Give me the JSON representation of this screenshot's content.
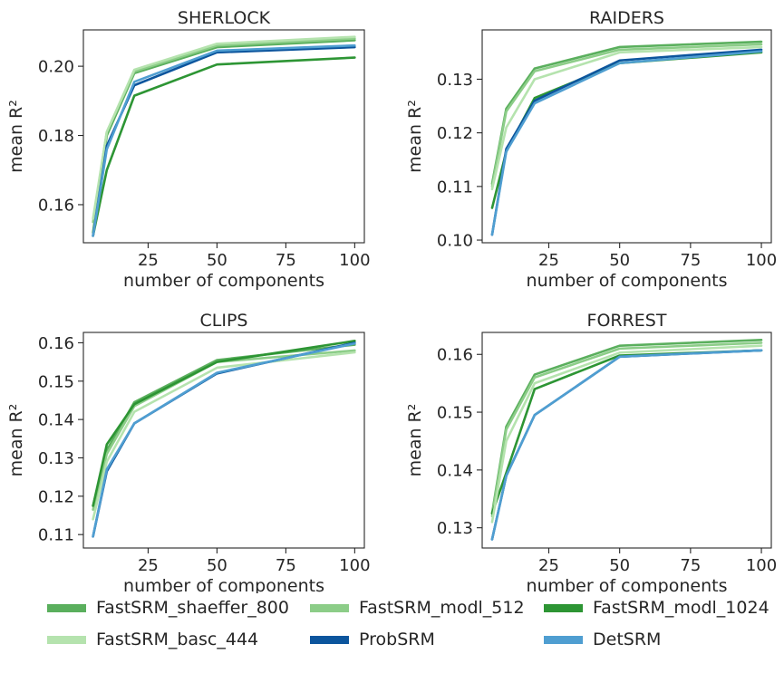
{
  "chart_data": [
    {
      "type": "line",
      "title": "SHERLOCK",
      "xlabel": "number of components",
      "ylabel": "mean R²",
      "xlim": [
        1.5,
        103.5
      ],
      "ylim": [
        0.149,
        0.2105
      ],
      "xticks": [
        25,
        50,
        75,
        100
      ],
      "yticks": [
        0.16,
        0.18,
        0.2
      ],
      "ytick_labels": [
        "0.16",
        "0.18",
        "0.20"
      ],
      "x": [
        5,
        10,
        20,
        50,
        100
      ],
      "series": [
        {
          "name": "FastSRM_shaeffer_800",
          "values": [
            0.152,
            0.18,
            0.198,
            0.2055,
            0.2075
          ]
        },
        {
          "name": "FastSRM_modl_512",
          "values": [
            0.155,
            0.181,
            0.1985,
            0.206,
            0.208
          ]
        },
        {
          "name": "FastSRM_modl_1024",
          "values": [
            0.151,
            0.17,
            0.1915,
            0.2005,
            0.2025
          ]
        },
        {
          "name": "FastSRM_basc_444",
          "values": [
            0.156,
            0.181,
            0.199,
            0.2065,
            0.2085
          ]
        },
        {
          "name": "ProbSRM",
          "values": [
            0.151,
            0.177,
            0.1945,
            0.204,
            0.2055
          ]
        },
        {
          "name": "DetSRM",
          "values": [
            0.151,
            0.176,
            0.1955,
            0.2045,
            0.206
          ]
        }
      ]
    },
    {
      "type": "line",
      "title": "RAIDERS",
      "xlabel": "number of components",
      "ylabel": "mean R²",
      "xlim": [
        1.5,
        103.5
      ],
      "ylim": [
        0.0995,
        0.1392
      ],
      "xticks": [
        25,
        50,
        75,
        100
      ],
      "yticks": [
        0.1,
        0.11,
        0.12,
        0.13
      ],
      "ytick_labels": [
        "0.10",
        "0.11",
        "0.12",
        "0.13"
      ],
      "x": [
        5,
        10,
        20,
        50,
        100
      ],
      "series": [
        {
          "name": "FastSRM_shaeffer_800",
          "values": [
            0.1105,
            0.1245,
            0.132,
            0.136,
            0.137
          ]
        },
        {
          "name": "FastSRM_modl_512",
          "values": [
            0.11,
            0.124,
            0.1315,
            0.1355,
            0.1365
          ]
        },
        {
          "name": "FastSRM_modl_1024",
          "values": [
            0.106,
            0.1165,
            0.1265,
            0.133,
            0.135
          ]
        },
        {
          "name": "FastSRM_basc_444",
          "values": [
            0.1095,
            0.121,
            0.13,
            0.135,
            0.136
          ]
        },
        {
          "name": "ProbSRM",
          "values": [
            0.101,
            0.117,
            0.126,
            0.1335,
            0.1355
          ]
        },
        {
          "name": "DetSRM",
          "values": [
            0.101,
            0.1165,
            0.1255,
            0.133,
            0.1352
          ]
        }
      ]
    },
    {
      "type": "line",
      "title": "CLIPS",
      "xlabel": "number of components",
      "ylabel": "mean R²",
      "xlim": [
        1.5,
        103.5
      ],
      "ylim": [
        0.1065,
        0.1627
      ],
      "xticks": [
        25,
        50,
        75,
        100
      ],
      "yticks": [
        0.11,
        0.12,
        0.13,
        0.14,
        0.15,
        0.16
      ],
      "ytick_labels": [
        "0.11",
        "0.12",
        "0.13",
        "0.14",
        "0.15",
        "0.16"
      ],
      "x": [
        5,
        10,
        20,
        50,
        100
      ],
      "series": [
        {
          "name": "FastSRM_shaeffer_800",
          "values": [
            0.1175,
            0.132,
            0.1445,
            0.1555,
            0.1595
          ]
        },
        {
          "name": "FastSRM_modl_512",
          "values": [
            0.1165,
            0.131,
            0.1435,
            0.155,
            0.158
          ]
        },
        {
          "name": "FastSRM_modl_1024",
          "values": [
            0.1175,
            0.1335,
            0.144,
            0.155,
            0.1605
          ]
        },
        {
          "name": "FastSRM_basc_444",
          "values": [
            0.114,
            0.129,
            0.142,
            0.1535,
            0.1575
          ]
        },
        {
          "name": "ProbSRM",
          "values": [
            0.1095,
            0.1265,
            0.139,
            0.152,
            0.16
          ]
        },
        {
          "name": "DetSRM",
          "values": [
            0.1095,
            0.127,
            0.139,
            0.1522,
            0.1598
          ]
        }
      ]
    },
    {
      "type": "line",
      "title": "FORREST",
      "xlabel": "number of components",
      "ylabel": "mean R²",
      "xlim": [
        1.5,
        103.5
      ],
      "ylim": [
        0.1265,
        0.1638
      ],
      "xticks": [
        25,
        50,
        75,
        100
      ],
      "yticks": [
        0.13,
        0.14,
        0.15,
        0.16
      ],
      "ytick_labels": [
        "0.13",
        "0.14",
        "0.15",
        "0.16"
      ],
      "x": [
        5,
        10,
        20,
        50,
        100
      ],
      "series": [
        {
          "name": "FastSRM_shaeffer_800",
          "values": [
            0.1325,
            0.1475,
            0.1565,
            0.1615,
            0.1625
          ]
        },
        {
          "name": "FastSRM_modl_512",
          "values": [
            0.132,
            0.147,
            0.156,
            0.161,
            0.162
          ]
        },
        {
          "name": "FastSRM_modl_1024",
          "values": [
            0.1325,
            0.1395,
            0.154,
            0.1598,
            0.1607
          ]
        },
        {
          "name": "FastSRM_basc_444",
          "values": [
            0.131,
            0.145,
            0.155,
            0.1603,
            0.1615
          ]
        },
        {
          "name": "ProbSRM",
          "values": [
            0.128,
            0.139,
            0.1495,
            0.1596,
            0.1607
          ]
        },
        {
          "name": "DetSRM",
          "values": [
            0.128,
            0.139,
            0.1495,
            0.1596,
            0.1607
          ]
        }
      ]
    }
  ],
  "legend": {
    "placement": "bottom",
    "items": [
      {
        "label": "FastSRM_shaeffer_800",
        "color": "#5aaf5d"
      },
      {
        "label": "FastSRM_modl_512",
        "color": "#8ccd88"
      },
      {
        "label": "FastSRM_modl_1024",
        "color": "#2d9534"
      },
      {
        "label": "FastSRM_basc_444",
        "color": "#b5e3ae"
      },
      {
        "label": "ProbSRM",
        "color": "#0c559d"
      },
      {
        "label": "DetSRM",
        "color": "#4f9ed1"
      }
    ]
  }
}
